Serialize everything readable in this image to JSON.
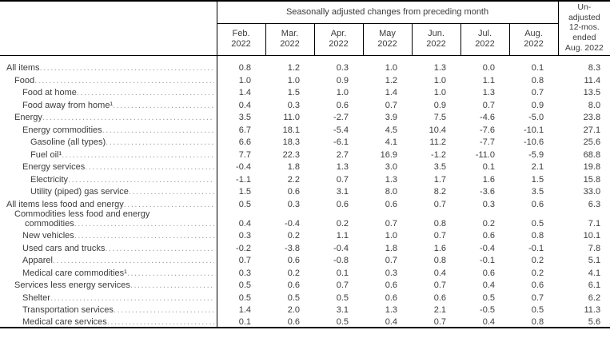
{
  "header": {
    "span_title": "Seasonally adjusted changes from preceding month",
    "months": [
      "Feb.\n2022",
      "Mar.\n2022",
      "Apr.\n2022",
      "May\n2022",
      "Jun.\n2022",
      "Jul.\n2022",
      "Aug.\n2022"
    ],
    "unadjusted": "Un-\nadjusted\n12-mos.\nended\nAug. 2022"
  },
  "colors": {
    "text": "#3c3c3c",
    "border": "#000000",
    "leader_dots": "#999999",
    "background": "#ffffff"
  },
  "rows": [
    {
      "label": "All items",
      "indent": 0,
      "values": [
        "0.8",
        "1.2",
        "0.3",
        "1.0",
        "1.3",
        "0.0",
        "0.1",
        "8.3"
      ]
    },
    {
      "label": "Food",
      "indent": 1,
      "values": [
        "1.0",
        "1.0",
        "0.9",
        "1.2",
        "1.0",
        "1.1",
        "0.8",
        "11.4"
      ]
    },
    {
      "label": "Food at home",
      "indent": 2,
      "values": [
        "1.4",
        "1.5",
        "1.0",
        "1.4",
        "1.0",
        "1.3",
        "0.7",
        "13.5"
      ]
    },
    {
      "label": "Food away from home¹",
      "indent": 2,
      "values": [
        "0.4",
        "0.3",
        "0.6",
        "0.7",
        "0.9",
        "0.7",
        "0.9",
        "8.0"
      ]
    },
    {
      "label": "Energy",
      "indent": 1,
      "values": [
        "3.5",
        "11.0",
        "-2.7",
        "3.9",
        "7.5",
        "-4.6",
        "-5.0",
        "23.8"
      ]
    },
    {
      "label": "Energy commodities",
      "indent": 2,
      "values": [
        "6.7",
        "18.1",
        "-5.4",
        "4.5",
        "10.4",
        "-7.6",
        "-10.1",
        "27.1"
      ]
    },
    {
      "label": "Gasoline (all types)",
      "indent": 3,
      "values": [
        "6.6",
        "18.3",
        "-6.1",
        "4.1",
        "11.2",
        "-7.7",
        "-10.6",
        "25.6"
      ]
    },
    {
      "label": "Fuel oil¹",
      "indent": 3,
      "values": [
        "7.7",
        "22.3",
        "2.7",
        "16.9",
        "-1.2",
        "-11.0",
        "-5.9",
        "68.8"
      ]
    },
    {
      "label": "Energy services",
      "indent": 2,
      "values": [
        "-0.4",
        "1.8",
        "1.3",
        "3.0",
        "3.5",
        "0.1",
        "2.1",
        "19.8"
      ]
    },
    {
      "label": "Electricity",
      "indent": 3,
      "values": [
        "-1.1",
        "2.2",
        "0.7",
        "1.3",
        "1.7",
        "1.6",
        "1.5",
        "15.8"
      ]
    },
    {
      "label": "Utility (piped) gas service",
      "indent": 3,
      "values": [
        "1.5",
        "0.6",
        "3.1",
        "8.0",
        "8.2",
        "-3.6",
        "3.5",
        "33.0"
      ]
    },
    {
      "label": "All items less food and energy",
      "indent": 0,
      "values": [
        "0.5",
        "0.3",
        "0.6",
        "0.6",
        "0.7",
        "0.3",
        "0.6",
        "6.3"
      ]
    },
    {
      "label": "Commodities less food and energy",
      "label2": "commodities",
      "indent": 1,
      "values": [
        "0.4",
        "-0.4",
        "0.2",
        "0.7",
        "0.8",
        "0.2",
        "0.5",
        "7.1"
      ]
    },
    {
      "label": "New vehicles",
      "indent": 2,
      "values": [
        "0.3",
        "0.2",
        "1.1",
        "1.0",
        "0.7",
        "0.6",
        "0.8",
        "10.1"
      ]
    },
    {
      "label": "Used cars and trucks",
      "indent": 2,
      "values": [
        "-0.2",
        "-3.8",
        "-0.4",
        "1.8",
        "1.6",
        "-0.4",
        "-0.1",
        "7.8"
      ]
    },
    {
      "label": "Apparel",
      "indent": 2,
      "values": [
        "0.7",
        "0.6",
        "-0.8",
        "0.7",
        "0.8",
        "-0.1",
        "0.2",
        "5.1"
      ]
    },
    {
      "label": "Medical care commodities¹",
      "indent": 2,
      "values": [
        "0.3",
        "0.2",
        "0.1",
        "0.3",
        "0.4",
        "0.6",
        "0.2",
        "4.1"
      ]
    },
    {
      "label": "Services less energy services",
      "indent": 1,
      "values": [
        "0.5",
        "0.6",
        "0.7",
        "0.6",
        "0.7",
        "0.4",
        "0.6",
        "6.1"
      ]
    },
    {
      "label": "Shelter",
      "indent": 2,
      "values": [
        "0.5",
        "0.5",
        "0.5",
        "0.6",
        "0.6",
        "0.5",
        "0.7",
        "6.2"
      ]
    },
    {
      "label": "Transportation services",
      "indent": 2,
      "values": [
        "1.4",
        "2.0",
        "3.1",
        "1.3",
        "2.1",
        "-0.5",
        "0.5",
        "11.3"
      ]
    },
    {
      "label": "Medical care services",
      "indent": 2,
      "values": [
        "0.1",
        "0.6",
        "0.5",
        "0.4",
        "0.7",
        "0.4",
        "0.8",
        "5.6"
      ]
    }
  ]
}
